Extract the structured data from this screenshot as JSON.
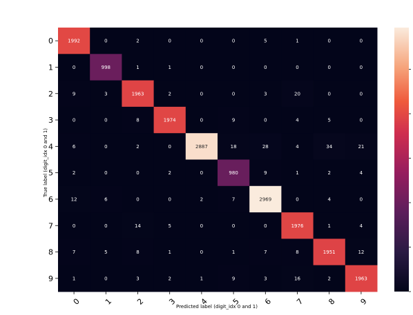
{
  "chart_data": {
    "type": "heatmap",
    "title": "",
    "xlabel": "Predicted label (digit_idx 0 and 1)",
    "ylabel": "True label (digit_idx 0 and 1)",
    "x_categories": [
      "0",
      "1",
      "2",
      "3",
      "4",
      "5",
      "6",
      "7",
      "8",
      "9"
    ],
    "y_categories": [
      "0",
      "1",
      "2",
      "3",
      "4",
      "5",
      "6",
      "7",
      "8",
      "9"
    ],
    "matrix": [
      [
        1992,
        0,
        2,
        0,
        0,
        0,
        5,
        1,
        0,
        0
      ],
      [
        0,
        998,
        1,
        1,
        0,
        0,
        0,
        0,
        0,
        0
      ],
      [
        9,
        3,
        1963,
        2,
        0,
        0,
        3,
        20,
        0,
        0
      ],
      [
        0,
        0,
        8,
        1974,
        0,
        9,
        0,
        4,
        5,
        0
      ],
      [
        6,
        0,
        2,
        0,
        2887,
        18,
        28,
        4,
        34,
        21
      ],
      [
        2,
        0,
        0,
        2,
        0,
        980,
        9,
        1,
        2,
        4
      ],
      [
        12,
        6,
        0,
        0,
        2,
        7,
        2969,
        0,
        4,
        0
      ],
      [
        0,
        0,
        14,
        5,
        0,
        0,
        0,
        1976,
        1,
        4
      ],
      [
        7,
        5,
        8,
        1,
        0,
        1,
        7,
        8,
        1951,
        12
      ],
      [
        1,
        0,
        3,
        2,
        1,
        9,
        3,
        16,
        2,
        1963
      ]
    ],
    "value_range": [
      0,
      2969
    ],
    "colormap": "rocket",
    "colorbar": true,
    "x_tick_rotation": 45
  }
}
